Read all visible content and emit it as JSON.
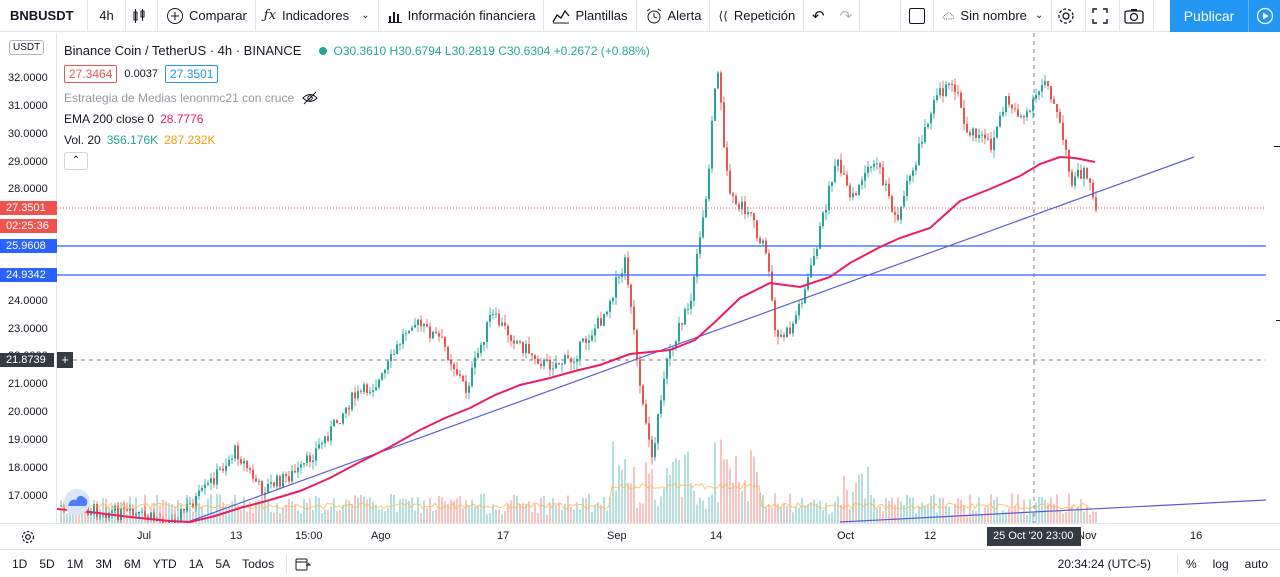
{
  "toolbar": {
    "symbol": "BNBUSDT",
    "interval": "4h",
    "compare": "Comparar",
    "indicators": "Indicadores",
    "financial_info": "Información financiera",
    "templates": "Plantillas",
    "alert": "Alerta",
    "replay": "Repetición",
    "layout_name": "Sin nombre",
    "publish": "Publicar"
  },
  "legend": {
    "title": "Binance Coin / TetherUS · 4h · BINANCE",
    "ohlc": "O30.3610 H30.6794 L30.2819 C30.6304 +0.2672 (+0.88%)",
    "bid": "27.3464",
    "spread": "0.0037",
    "ask": "27.3501",
    "strategy": "Estrategia de Medias lenonmc21 con cruce",
    "ema_label": "EMA 200 close 0",
    "ema_value": "28.7776",
    "vol_label": "Vol. 20",
    "vol_value": "356.176K",
    "vol_ma": "287.232K"
  },
  "price_axis": {
    "currency": "USDT",
    "ticks": [
      "32.0000",
      "31.0000",
      "30.0000",
      "29.0000",
      "28.0000",
      "24.0000",
      "23.0000",
      "22.0000",
      "21.0000",
      "20.0000",
      "19.0000",
      "18.0000",
      "17.0000"
    ],
    "last_price": "27.3501",
    "countdown": "02:25:36",
    "level_1": "25.9608",
    "level_2": "24.9342",
    "crosshair_price": "21.8739"
  },
  "time_axis": {
    "labels": [
      "Jul",
      "13",
      "15:00",
      "Ago",
      "17",
      "Sep",
      "14",
      "Oct",
      "12",
      "Nov",
      "16"
    ],
    "crosshair_time": "25 Oct '20  23:00"
  },
  "bottom_bar": {
    "ranges": [
      "1D",
      "5D",
      "1M",
      "3M",
      "6M",
      "YTD",
      "1A",
      "5A",
      "Todos"
    ],
    "clock": "20:34:24 (UTC-5)",
    "percent": "%",
    "log": "log",
    "auto": "auto"
  },
  "colors": {
    "up": "#26a69a",
    "down": "#ef5350",
    "ema": "#e91e63",
    "trend": "#5b5bd6",
    "accent": "#2196f3",
    "level": "#2962ff"
  }
}
